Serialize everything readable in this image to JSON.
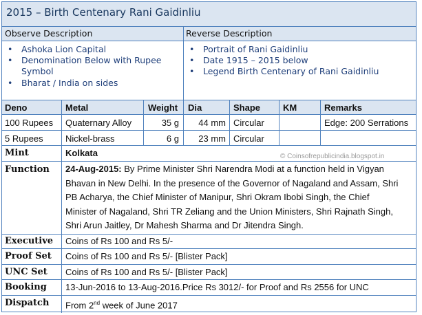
{
  "title": "2015 – Birth Centenary Rani Gaidinliu",
  "observe": {
    "heading": "Observe Description",
    "items": [
      "Ashoka Lion Capital",
      "Denomination Below with Rupee",
      "Symbol",
      "Bharat / India on sides"
    ]
  },
  "reverse": {
    "heading": "Reverse Description",
    "items": [
      "Portrait of Rani Gaidinliu",
      "Date 1915 – 2015 below",
      "Legend Birth Centenary of Rani Gaidinliu"
    ]
  },
  "specs": {
    "headers": [
      "Deno",
      "Metal",
      "Weight",
      "Dia",
      "Shape",
      "KM",
      "Remarks"
    ],
    "rows": [
      [
        "100 Rupees",
        "Quaternary Alloy",
        "35 g",
        "44 mm",
        "Circular",
        "",
        "Edge: 200 Serrations"
      ],
      [
        "5 Rupees",
        "Nickel-brass",
        "6 g",
        "23 mm",
        "Circular",
        "",
        ""
      ]
    ]
  },
  "mint": {
    "label": "Mint",
    "value": "Kolkata",
    "watermark": "© Coinsofrepublicindia.blogspot.in"
  },
  "function": {
    "label": "Function",
    "date": "24-Aug-2015:",
    "lines": [
      " By Prime Minister Shri Narendra Modi at a function held in Vigyan",
      "Bhavan in New Delhi. In the presence of the Governor of Nagaland and Assam, Shri",
      "PB Acharya, the Chief Minister of Manipur, Shri Okram Ibobi Singh, the Chief",
      "Minister of Nagaland, Shri TR Zeliang and the Union Ministers, Shri Rajnath Singh,",
      "Shri Arun Jaitley, Dr Mahesh Sharma and Dr Jitendra Singh."
    ]
  },
  "info": [
    {
      "label": "Executive",
      "value": "Coins of Rs 100 and Rs 5/-"
    },
    {
      "label": "Proof Set",
      "value": "Coins of Rs 100 and Rs 5/-  [Blister Pack]"
    },
    {
      "label": "UNC Set",
      "value": "Coins of Rs 100 and Rs 5/-  [Blister Pack]"
    },
    {
      "label": "Booking",
      "value": "13-Jun-2016 to 13-Aug-2016.Price Rs 3012/- for Proof and Rs 2556 for UNC"
    }
  ],
  "dispatch": {
    "label": "Dispatch",
    "prefix": "From 2",
    "sup": "nd",
    "suffix": " week of June 2017"
  }
}
